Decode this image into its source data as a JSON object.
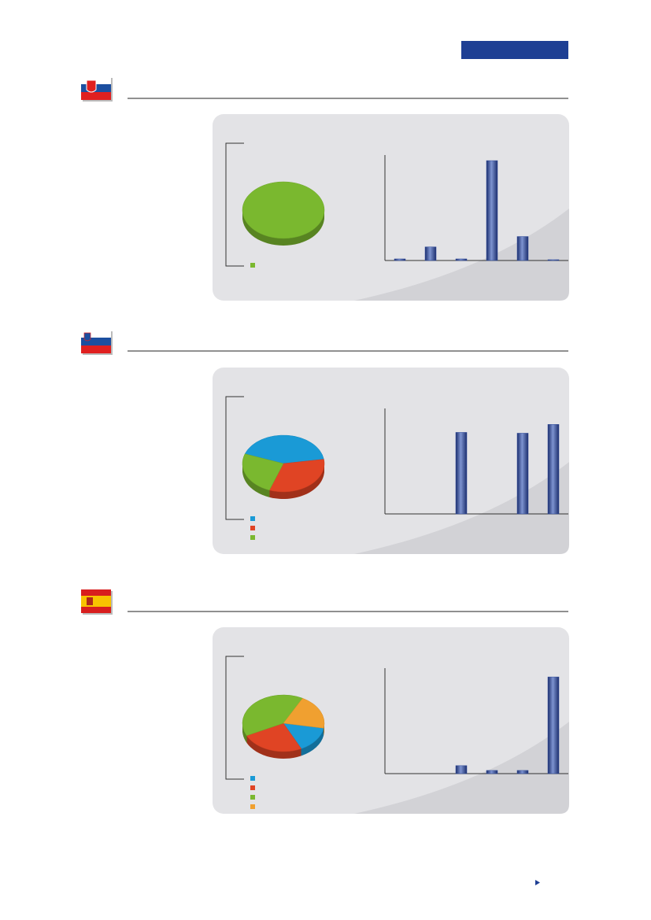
{
  "sections": [
    {
      "pie": {
        "values": [
          100
        ],
        "colors": [
          "#7ab82f"
        ]
      },
      "bars": {
        "type": "bar",
        "values": [
          2,
          17,
          2,
          125,
          30,
          1
        ],
        "ylim": [
          0,
          130
        ],
        "color": "#2e4a9a"
      }
    },
    {
      "pie": {
        "values": [
          42,
          33,
          25
        ],
        "colors": [
          "#1a9ad6",
          "#e04424",
          "#7ab82f"
        ]
      },
      "bars": {
        "type": "bar",
        "values": [
          0,
          0,
          102,
          0,
          101,
          112
        ],
        "ylim": [
          0,
          130
        ],
        "color": "#2e4a9a"
      }
    },
    {
      "pie": {
        "values": [
          15,
          25,
          40,
          20
        ],
        "colors": [
          "#1a9ad6",
          "#e04424",
          "#7ab82f",
          "#f0a030"
        ]
      },
      "bars": {
        "type": "bar",
        "values": [
          0,
          0,
          10,
          4,
          4,
          121
        ],
        "ylim": [
          0,
          130
        ],
        "color": "#2e4a9a"
      }
    }
  ]
}
